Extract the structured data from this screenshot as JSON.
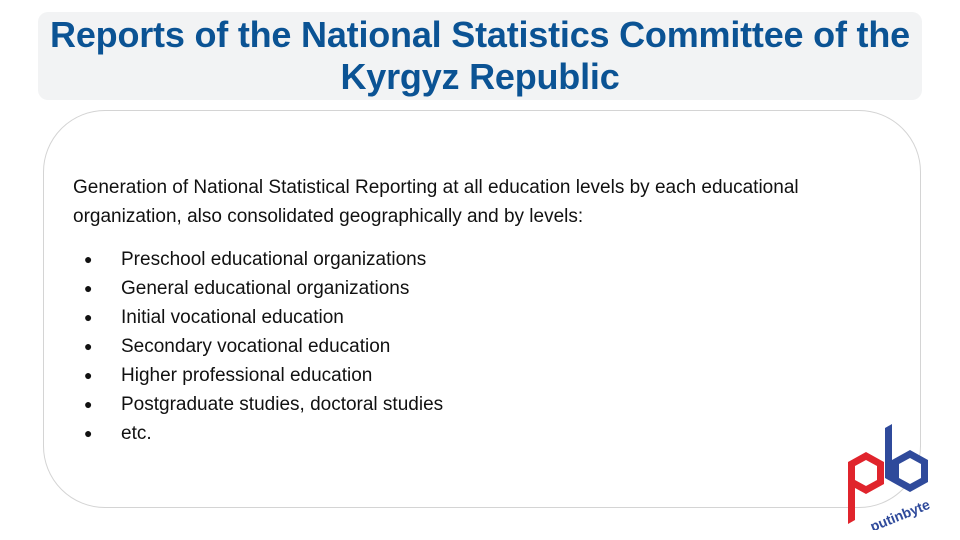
{
  "title": "Reports of the National Statistics Committee of the Kyrgyz Republic",
  "intro": "Generation of National Statistical Reporting at all education levels by each educational organization, also consolidated geographically and by levels:",
  "bullet_glyph": "●",
  "bullets": [
    "Preschool educational organizations",
    "General educational organizations",
    "Initial vocational education",
    "Secondary vocational education",
    "Higher professional education",
    "Postgraduate studies, doctoral studies",
    "etc."
  ],
  "logo": {
    "text": "putinbyte",
    "colors": {
      "red": "#e0242c",
      "blue": "#2f4a9b"
    }
  },
  "colors": {
    "title": "#0b5394",
    "title_bg": "#f2f3f4",
    "text": "#111111"
  }
}
